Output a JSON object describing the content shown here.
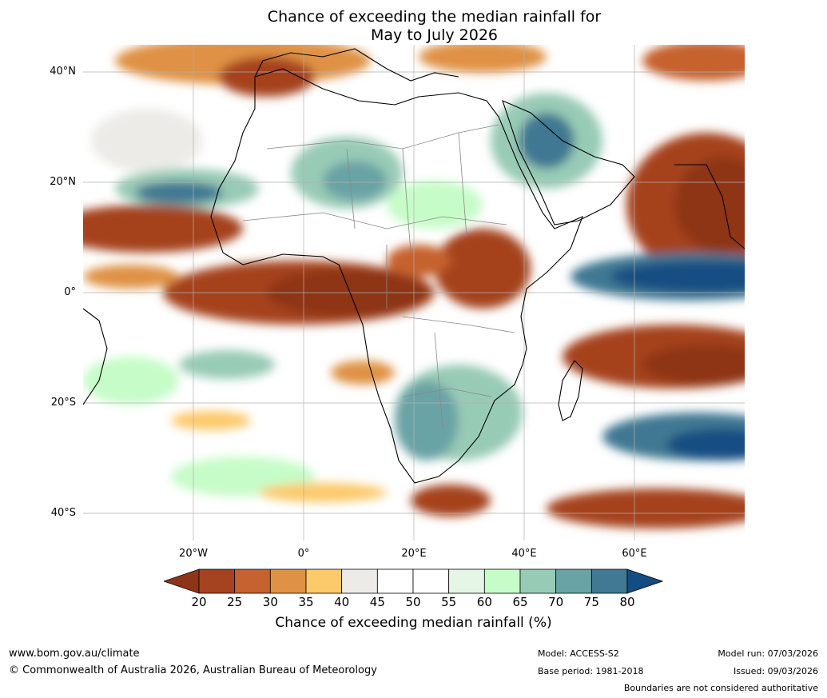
{
  "title": {
    "line1": "Chance of exceeding the median rainfall for",
    "line2": "May to July 2026"
  },
  "map": {
    "lat_labels": [
      "40°N",
      "20°N",
      "0°",
      "20°S",
      "40°S"
    ],
    "lon_labels": [
      "20°W",
      "0°",
      "20°E",
      "40°E",
      "60°E"
    ],
    "lat_range": [
      -45,
      45
    ],
    "lon_range": [
      -40,
      80
    ]
  },
  "colorbar": {
    "ticks": [
      "20",
      "25",
      "30",
      "35",
      "40",
      "45",
      "50",
      "55",
      "60",
      "65",
      "70",
      "75",
      "80"
    ],
    "colors": {
      "below_20": "#8e3519",
      "c20_25": "#a5421f",
      "c25_30": "#c6622f",
      "c30_35": "#df9245",
      "c35_40": "#fcc96b",
      "c40_45": "#ecebe7",
      "c45_50": "#ffffff",
      "c50_55": "#ffffff",
      "c55_60": "#e5f5e6",
      "c60_65": "#c6fcc8",
      "c65_70": "#98cbb5",
      "c70_75": "#6aa3a5",
      "c75_80": "#417893",
      "above_80": "#144d82"
    },
    "label": "Chance of exceeding median rainfall (%)"
  },
  "footer": {
    "website": "www.bom.gov.au/climate",
    "copyright": "© Commonwealth of Australia 2026, Australian Bureau of Meteorology",
    "model": "Model: ACCESS-S2",
    "base_period": "Base period: 1981-2018",
    "model_run": "Model run: 07/03/2026",
    "issued": "Issued: 09/03/2026",
    "disclaimer": "Boundaries are not considered authoritative"
  }
}
